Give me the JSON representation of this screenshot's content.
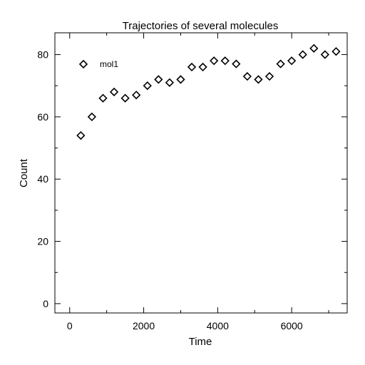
{
  "chart_data": {
    "type": "scatter",
    "title": "Trajectories of several molecules",
    "xlabel": "Time",
    "ylabel": "Count",
    "xlim": [
      -400,
      7500
    ],
    "ylim": [
      -3,
      87
    ],
    "xticks": [
      0,
      2000,
      4000,
      6000
    ],
    "yticks": [
      0,
      20,
      40,
      60,
      80
    ],
    "x_minor_step": 1000,
    "y_minor_step": 10,
    "grid": false,
    "legend_position": "top-left",
    "marker": "diamond-open",
    "series": [
      {
        "name": "mol1",
        "x": [
          300,
          600,
          900,
          1200,
          1500,
          1800,
          2100,
          2400,
          2700,
          3000,
          3300,
          3600,
          3900,
          4200,
          4500,
          4800,
          5100,
          5400,
          5700,
          6000,
          6300,
          6600,
          6900,
          7200
        ],
        "y": [
          54,
          60,
          66,
          68,
          66,
          67,
          70,
          72,
          71,
          72,
          76,
          76,
          78,
          78,
          77,
          73,
          72,
          73,
          77,
          78,
          80,
          82,
          80,
          81
        ]
      }
    ]
  }
}
